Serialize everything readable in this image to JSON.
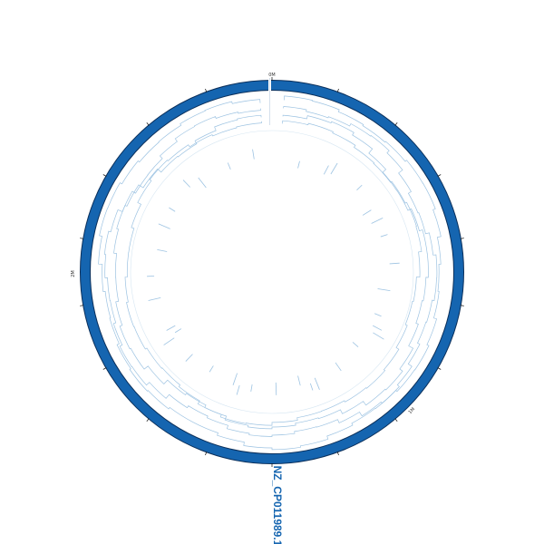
{
  "sequence": {
    "name": "NZ_CP011989.1"
  },
  "tick_labels": {
    "top": "0M",
    "left": "2M",
    "bottom_right": "1M"
  },
  "colors": {
    "backbone": "#1565b0",
    "outline": "#0b2f5a",
    "feature_line": "#9dc3e2",
    "label": "#1565b0"
  }
}
